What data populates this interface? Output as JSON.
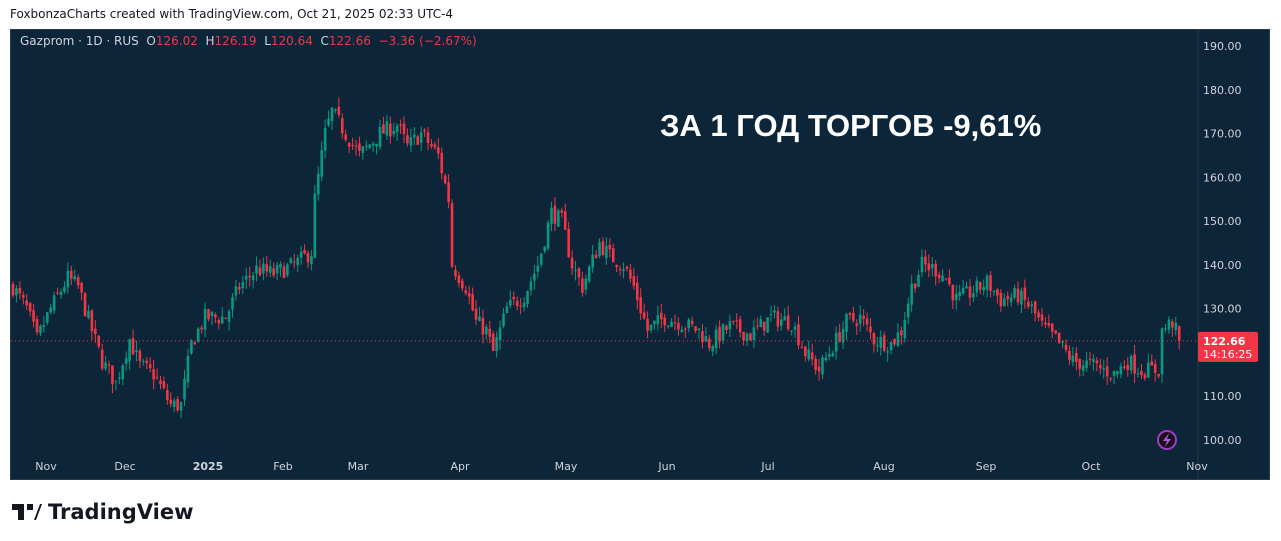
{
  "credit": "FoxbonzaCharts created with TradingView.com, Oct 21, 2025 02:33 UTC-4",
  "legend": {
    "symbol": "Gazprom · 1D · RUS",
    "o_label": "O",
    "o": "126.02",
    "h_label": "H",
    "h": "126.19",
    "l_label": "L",
    "l": "120.64",
    "c_label": "C",
    "c": "122.66",
    "change": "−3.36 (−2.67%)"
  },
  "headline": "ЗА 1 ГОД ТОРГОВ -9,61%",
  "logo": "TradingView",
  "colors": {
    "up": "#089981",
    "down": "#f23645",
    "bg": "#0c2538"
  },
  "chart_data": {
    "type": "candlestick",
    "title": "Gazprom · 1D · RUS",
    "ylim": [
      97,
      193
    ],
    "y_ticks": [
      "190.00",
      "180.00",
      "170.00",
      "160.00",
      "150.00",
      "140.00",
      "130.00",
      "120.00",
      "110.00",
      "100.00"
    ],
    "x_ticks": [
      "Nov",
      "Dec",
      "2025",
      "Feb",
      "Mar",
      "Apr",
      "May",
      "Jun",
      "Jul",
      "Aug",
      "Sep",
      "Oct",
      "Nov"
    ],
    "last_price": "122.66",
    "countdown": "14:16:25",
    "approx_close_path": [
      [
        0,
        135
      ],
      [
        4,
        130
      ],
      [
        7,
        123
      ],
      [
        11,
        130
      ],
      [
        16,
        137
      ],
      [
        19,
        135
      ],
      [
        23,
        125
      ],
      [
        26,
        118
      ],
      [
        30,
        113
      ],
      [
        34,
        123
      ],
      [
        37,
        117
      ],
      [
        41,
        115
      ],
      [
        46,
        108
      ],
      [
        49,
        108
      ],
      [
        52,
        122
      ],
      [
        56,
        128
      ],
      [
        62,
        128
      ],
      [
        66,
        135
      ],
      [
        71,
        139
      ],
      [
        76,
        138
      ],
      [
        82,
        140
      ],
      [
        87,
        143
      ],
      [
        88,
        155
      ],
      [
        91,
        170
      ],
      [
        93,
        175
      ],
      [
        97,
        170
      ],
      [
        101,
        165
      ],
      [
        107,
        170
      ],
      [
        112,
        172
      ],
      [
        115,
        167
      ],
      [
        119,
        170
      ],
      [
        124,
        165
      ],
      [
        127,
        155
      ],
      [
        128,
        140
      ],
      [
        132,
        135
      ],
      [
        135,
        127
      ],
      [
        138,
        125
      ],
      [
        140,
        120
      ],
      [
        144,
        130
      ],
      [
        149,
        133
      ],
      [
        153,
        140
      ],
      [
        157,
        152
      ],
      [
        160,
        150
      ],
      [
        163,
        140
      ],
      [
        166,
        135
      ],
      [
        171,
        145
      ],
      [
        174,
        142
      ],
      [
        178,
        140
      ],
      [
        181,
        135
      ],
      [
        185,
        125
      ],
      [
        190,
        128
      ],
      [
        194,
        127
      ],
      [
        200,
        125
      ],
      [
        203,
        122
      ],
      [
        209,
        126
      ],
      [
        215,
        124
      ],
      [
        221,
        128
      ],
      [
        227,
        127
      ],
      [
        231,
        120
      ],
      [
        235,
        116
      ],
      [
        238,
        120
      ],
      [
        243,
        127
      ],
      [
        247,
        128
      ],
      [
        251,
        123
      ],
      [
        256,
        122
      ],
      [
        259,
        125
      ],
      [
        262,
        135
      ],
      [
        265,
        140
      ],
      [
        269,
        139
      ],
      [
        272,
        137
      ],
      [
        275,
        132
      ],
      [
        280,
        134
      ],
      [
        284,
        136
      ],
      [
        288,
        132
      ],
      [
        293,
        133
      ],
      [
        297,
        130
      ],
      [
        300,
        126
      ],
      [
        304,
        123
      ],
      [
        309,
        118
      ],
      [
        315,
        117
      ],
      [
        321,
        115
      ],
      [
        325,
        118
      ],
      [
        329,
        116
      ],
      [
        334,
        116
      ],
      [
        335,
        125
      ],
      [
        338,
        127
      ],
      [
        340,
        122.66
      ]
    ]
  }
}
